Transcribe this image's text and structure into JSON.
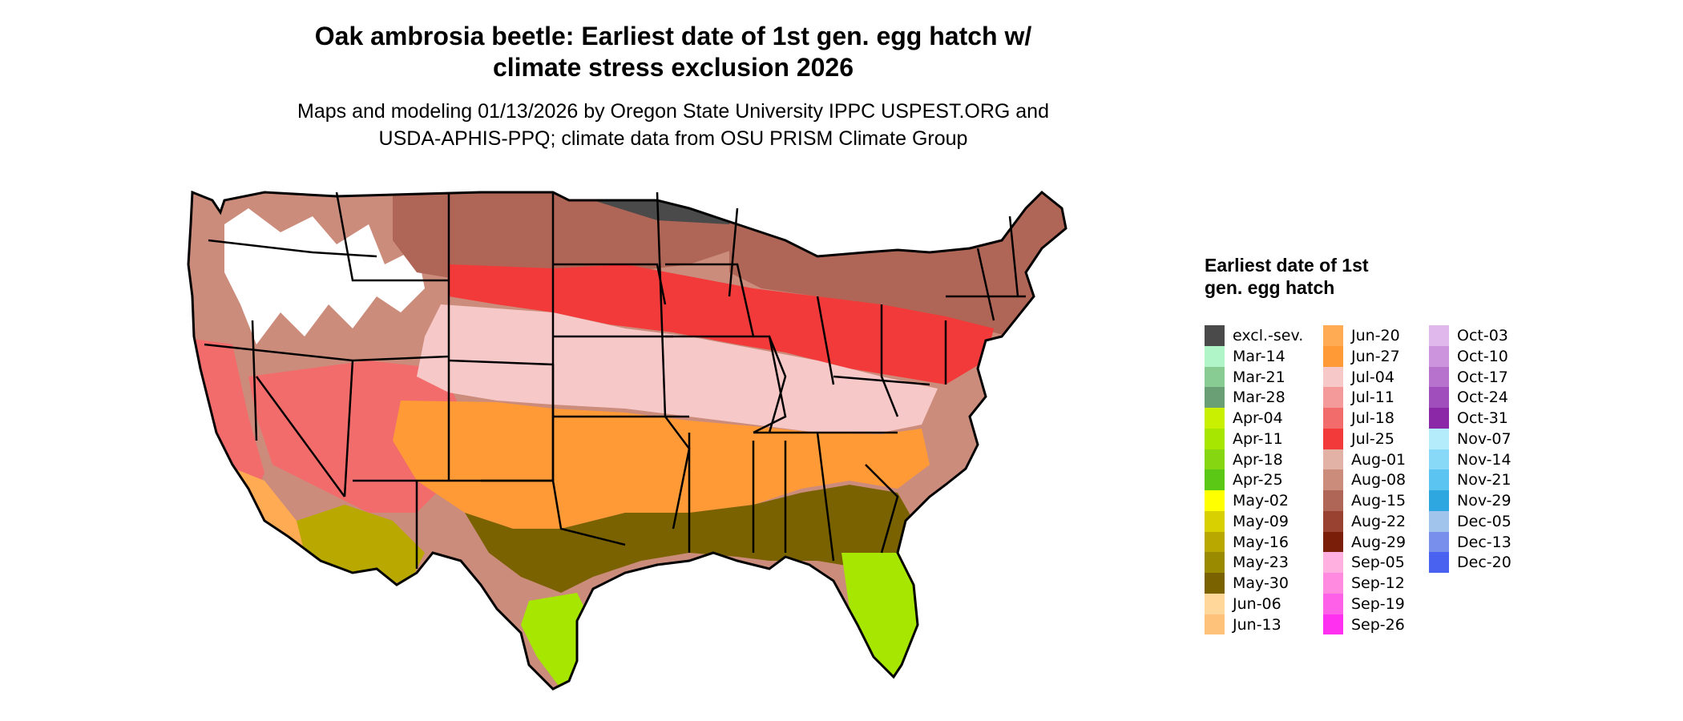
{
  "title": {
    "line1": "Oak ambrosia beetle: Earliest date of 1st gen. egg hatch w/",
    "line2": "climate stress exclusion 2026"
  },
  "subtitle": {
    "line1": "Maps and modeling 01/13/2026 by Oregon State University IPPC USPEST.ORG and",
    "line2": "USDA-APHIS-PPQ; climate data from OSU PRISM Climate Group"
  },
  "legend": {
    "title": "Earliest date of 1st gen. egg hatch",
    "columns": [
      [
        {
          "label": "excl.-sev.",
          "color": "#4a4a4a"
        },
        {
          "label": "Mar-14",
          "color": "#b0f5c8"
        },
        {
          "label": "Mar-21",
          "color": "#88cc94"
        },
        {
          "label": "Mar-28",
          "color": "#6a9e74"
        },
        {
          "label": "Apr-04",
          "color": "#c8f000"
        },
        {
          "label": "Apr-11",
          "color": "#a6e600"
        },
        {
          "label": "Apr-18",
          "color": "#86d612"
        },
        {
          "label": "Apr-25",
          "color": "#5cc816"
        },
        {
          "label": "May-02",
          "color": "#ffff00"
        },
        {
          "label": "May-09",
          "color": "#d8d000"
        },
        {
          "label": "May-16",
          "color": "#b8a800"
        },
        {
          "label": "May-23",
          "color": "#9a8a00"
        },
        {
          "label": "May-30",
          "color": "#7a6200"
        },
        {
          "label": "Jun-06",
          "color": "#ffd79a"
        },
        {
          "label": "Jun-13",
          "color": "#ffc27a"
        }
      ],
      [
        {
          "label": "Jun-20",
          "color": "#ffab54"
        },
        {
          "label": "Jun-27",
          "color": "#ff9a36"
        },
        {
          "label": "Jul-04",
          "color": "#f7c8c8"
        },
        {
          "label": "Jul-11",
          "color": "#f49a9a"
        },
        {
          "label": "Jul-18",
          "color": "#f26c6c"
        },
        {
          "label": "Jul-25",
          "color": "#f23a3a"
        },
        {
          "label": "Aug-01",
          "color": "#e3b2a6"
        },
        {
          "label": "Aug-08",
          "color": "#cc8c7c"
        },
        {
          "label": "Aug-15",
          "color": "#b06656"
        },
        {
          "label": "Aug-22",
          "color": "#9a4232"
        },
        {
          "label": "Aug-29",
          "color": "#7a1e0a"
        },
        {
          "label": "Sep-05",
          "color": "#ffb0e0"
        },
        {
          "label": "Sep-12",
          "color": "#ff8ae0"
        },
        {
          "label": "Sep-19",
          "color": "#ff60e8"
        },
        {
          "label": "Sep-26",
          "color": "#ff30f0"
        }
      ],
      [
        {
          "label": "Oct-03",
          "color": "#e0b8ec"
        },
        {
          "label": "Oct-10",
          "color": "#cc94dc"
        },
        {
          "label": "Oct-17",
          "color": "#b672cc"
        },
        {
          "label": "Oct-24",
          "color": "#a04ebc"
        },
        {
          "label": "Oct-31",
          "color": "#8a28a8"
        },
        {
          "label": "Nov-07",
          "color": "#b4ecfc"
        },
        {
          "label": "Nov-14",
          "color": "#88d8f8"
        },
        {
          "label": "Nov-21",
          "color": "#5cc4f0"
        },
        {
          "label": "Nov-29",
          "color": "#2ea6e0"
        },
        {
          "label": "Dec-05",
          "color": "#a0c4ec"
        },
        {
          "label": "Dec-13",
          "color": "#7890ec"
        },
        {
          "label": "Dec-20",
          "color": "#4a62f0"
        }
      ]
    ]
  },
  "map": {
    "regions": [
      {
        "name": "northwest-mountains",
        "color": "#cc8c7c"
      },
      {
        "name": "northwest-high-elevation",
        "color": "#ffffff"
      },
      {
        "name": "west-coast",
        "color": "#f26c6c"
      },
      {
        "name": "california-valley",
        "color": "#ffab54"
      },
      {
        "name": "desert-southwest",
        "color": "#b8a800"
      },
      {
        "name": "great-basin",
        "color": "#f26c6c"
      },
      {
        "name": "northern-plains",
        "color": "#b06656"
      },
      {
        "name": "upper-midwest-excluded",
        "color": "#4a4a4a"
      },
      {
        "name": "central-band",
        "color": "#f23a3a"
      },
      {
        "name": "lower-central-band",
        "color": "#f7c8c8"
      },
      {
        "name": "south-central",
        "color": "#ff9a36"
      },
      {
        "name": "gulf-coast",
        "color": "#7a6200"
      },
      {
        "name": "florida",
        "color": "#a6e600"
      },
      {
        "name": "northeast",
        "color": "#b06656"
      }
    ]
  }
}
